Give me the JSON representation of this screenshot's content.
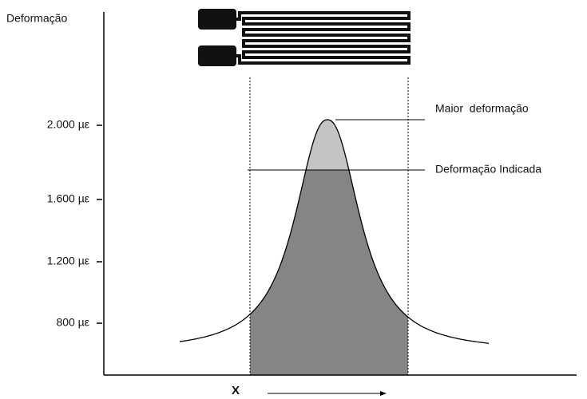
{
  "y_axis_label": "Deformação",
  "y_ticks": [
    "2.000 µε",
    "1.600 µε",
    "1.200 µε",
    "800 µε"
  ],
  "annotations": {
    "max": "Maior  deformação",
    "indicated": "Deformação Indicada"
  },
  "x_axis_label": "X"
}
